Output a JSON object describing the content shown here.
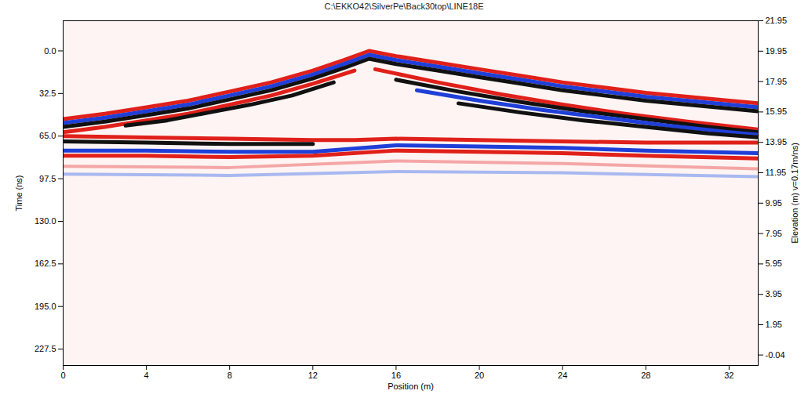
{
  "chart_data": {
    "type": "line",
    "title": "C:\\EKKO42\\SilverPe\\Back30top\\LINE18E",
    "x_label": "Position (m)",
    "y_label": "Time (ns)",
    "y2_label": "Elevation (m) v=0.17m/ns)",
    "xlim": [
      0,
      33.4
    ],
    "xticks": [
      0,
      4,
      8,
      12,
      16,
      20,
      24,
      28,
      32
    ],
    "ylim": [
      -23,
      240
    ],
    "yticks": [
      {
        "value": 0,
        "label": "0.0"
      },
      {
        "value": 32.5,
        "label": "32.5"
      },
      {
        "value": 65,
        "label": "65.0"
      },
      {
        "value": 97.5,
        "label": "97.5"
      },
      {
        "value": 130,
        "label": "130.0"
      },
      {
        "value": 162.5,
        "label": "162.5"
      },
      {
        "value": 195,
        "label": "195.0"
      },
      {
        "value": 227.5,
        "label": "227.5"
      }
    ],
    "y2lim": [
      -0.73,
      21.95
    ],
    "y2ticks": [
      21.95,
      19.95,
      17.95,
      15.95,
      13.95,
      11.95,
      9.95,
      7.95,
      5.95,
      3.95,
      1.95,
      -0.04
    ],
    "grid": false,
    "series": [
      {
        "color": "#e0201a",
        "x": [
          0,
          2,
          4,
          6,
          8,
          10,
          12,
          13.5,
          14.7,
          16,
          18,
          20,
          22,
          24,
          26,
          28,
          30,
          32,
          33.4
        ],
        "values": [
          52,
          48,
          43,
          38,
          31,
          24,
          15,
          7,
          0,
          4,
          9,
          14,
          19,
          24,
          28,
          32,
          35,
          38,
          40
        ]
      },
      {
        "color": "#1f3fd8",
        "x": [
          0,
          2,
          4,
          6,
          8,
          10,
          12,
          13.5,
          14.7,
          16,
          18,
          20,
          22,
          24,
          26,
          28,
          30,
          32,
          33.4
        ],
        "values": [
          55,
          51,
          46,
          41,
          34,
          27,
          18,
          10,
          3,
          7,
          12,
          17,
          22,
          27,
          31,
          35,
          38,
          41,
          43
        ]
      },
      {
        "color": "#111111",
        "x": [
          0,
          2,
          4,
          6,
          8,
          10,
          12,
          13.5,
          14.7,
          16,
          18,
          20,
          22,
          24,
          26,
          28,
          30,
          32,
          33.4
        ],
        "values": [
          58,
          54,
          49,
          44,
          37,
          30,
          21,
          13,
          6,
          10,
          15,
          20,
          25,
          30,
          34,
          38,
          41,
          44,
          46
        ]
      },
      {
        "color": "#e0201a",
        "x": [
          0,
          2,
          4,
          6,
          8,
          10,
          12,
          14
        ],
        "values": [
          62,
          58,
          53,
          48,
          41,
          34,
          25,
          15
        ]
      },
      {
        "color": "#111111",
        "x": [
          3,
          5,
          7,
          9,
          11,
          13
        ],
        "values": [
          57,
          53,
          47,
          41,
          34,
          24
        ]
      },
      {
        "color": "#e0201a",
        "x": [
          15,
          18,
          21,
          24,
          27,
          30,
          33.4
        ],
        "values": [
          14,
          24,
          33,
          41,
          48,
          54,
          60
        ]
      },
      {
        "color": "#111111",
        "x": [
          16,
          19,
          22,
          25,
          28,
          31,
          33.4
        ],
        "values": [
          22,
          31,
          39,
          46,
          52,
          58,
          62
        ]
      },
      {
        "color": "#1f3fd8",
        "x": [
          17,
          20,
          23,
          26,
          29,
          32,
          33.4
        ],
        "values": [
          30,
          38,
          45,
          51,
          57,
          62,
          64
        ]
      },
      {
        "color": "#111111",
        "x": [
          19,
          22,
          25,
          28,
          31,
          33.4
        ],
        "values": [
          40,
          47,
          53,
          58,
          63,
          66
        ]
      },
      {
        "color": "#e0201a",
        "x": [
          0,
          4,
          8,
          12,
          14,
          16,
          20,
          24,
          28,
          33.4
        ],
        "values": [
          65,
          66,
          67,
          68,
          68,
          67,
          68,
          69,
          70,
          70
        ]
      },
      {
        "color": "#111111",
        "x": [
          0,
          4,
          8,
          12
        ],
        "values": [
          69,
          70,
          71,
          71
        ]
      },
      {
        "color": "#1f3fd8",
        "x": [
          0,
          4,
          8,
          12,
          16,
          20,
          24,
          28,
          33.4
        ],
        "values": [
          76,
          76,
          77,
          77,
          72,
          73,
          74,
          76,
          78
        ]
      },
      {
        "color": "#e0201a",
        "x": [
          0,
          4,
          8,
          12,
          16,
          20,
          24,
          28,
          33.4
        ],
        "values": [
          80,
          80,
          81,
          80,
          76,
          77,
          78,
          80,
          82
        ]
      },
      {
        "color": "#f4a6a6",
        "x": [
          0,
          8,
          16,
          24,
          33.4
        ],
        "values": [
          88,
          89,
          84,
          86,
          90
        ]
      },
      {
        "color": "#a8b8f0",
        "x": [
          0,
          8,
          16,
          24,
          33.4
        ],
        "values": [
          94,
          95,
          92,
          93,
          96
        ]
      }
    ]
  }
}
